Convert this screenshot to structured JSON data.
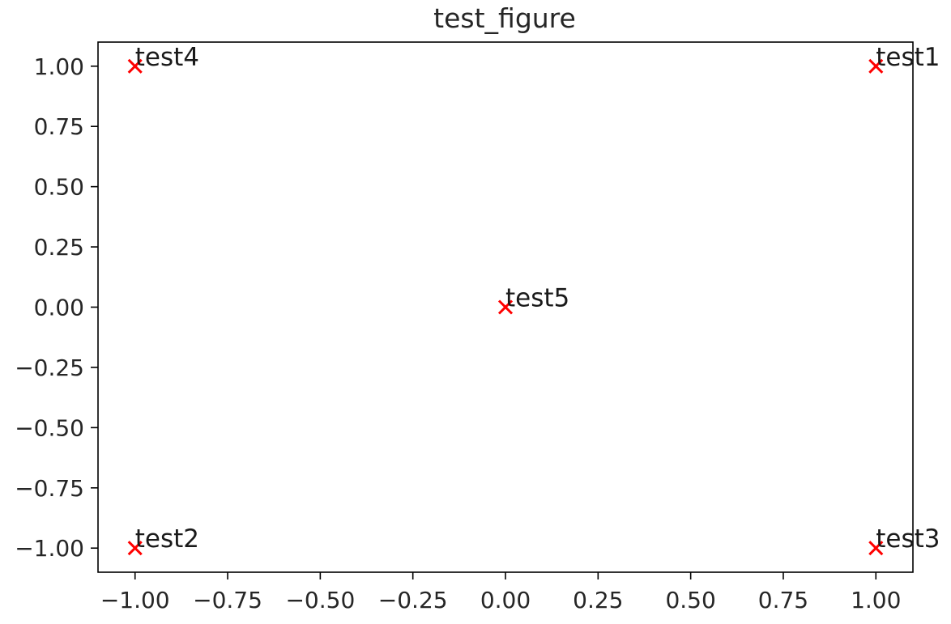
{
  "chart_data": {
    "type": "scatter",
    "title": "test_figure",
    "xlabel": "",
    "ylabel": "",
    "xlim": [
      -1.1,
      1.1
    ],
    "ylim": [
      -1.1,
      1.1
    ],
    "xticks": [
      -1.0,
      -0.75,
      -0.5,
      -0.25,
      0.0,
      0.25,
      0.5,
      0.75,
      1.0
    ],
    "xtick_labels": [
      "−1.00",
      "−0.75",
      "−0.50",
      "−0.25",
      "0.00",
      "0.25",
      "0.50",
      "0.75",
      "1.00"
    ],
    "yticks": [
      -1.0,
      -0.75,
      -0.5,
      -0.25,
      0.0,
      0.25,
      0.5,
      0.75,
      1.0
    ],
    "ytick_labels": [
      "−1.00",
      "−0.75",
      "−0.50",
      "−0.25",
      "0.00",
      "0.25",
      "0.50",
      "0.75",
      "1.00"
    ],
    "grid": false,
    "marker": "x",
    "marker_color": "#ff0000",
    "points": [
      {
        "x": 1,
        "y": 1,
        "label": "test1"
      },
      {
        "x": -1,
        "y": -1,
        "label": "test2"
      },
      {
        "x": 1,
        "y": -1,
        "label": "test3"
      },
      {
        "x": -1,
        "y": 1,
        "label": "test4"
      },
      {
        "x": 0,
        "y": 0,
        "label": "test5"
      }
    ]
  }
}
